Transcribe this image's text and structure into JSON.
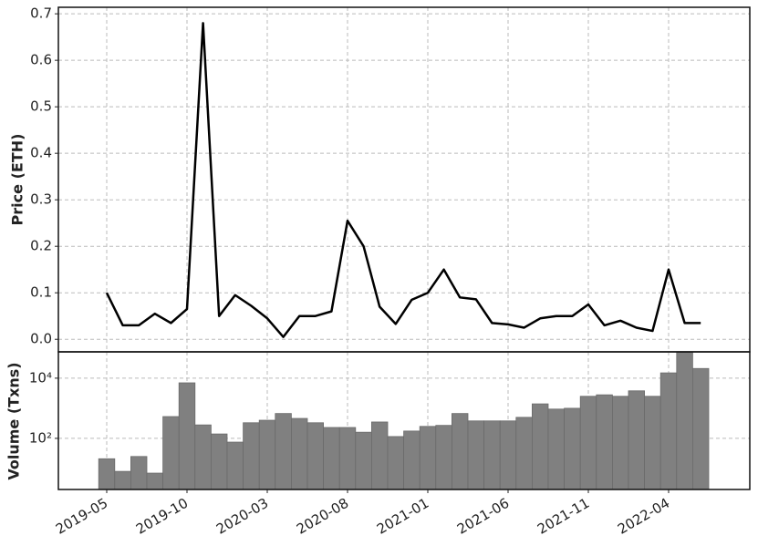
{
  "chart_data": [
    {
      "type": "line",
      "ylabel": "Price (ETH)",
      "color": "#000000",
      "grid": true,
      "x": [
        "2019-05",
        "2019-06",
        "2019-07",
        "2019-08",
        "2019-09",
        "2019-10",
        "2019-11",
        "2019-12",
        "2020-01",
        "2020-02",
        "2020-03",
        "2020-04",
        "2020-05",
        "2020-06",
        "2020-07",
        "2020-08",
        "2020-09",
        "2020-10",
        "2020-11",
        "2020-12",
        "2021-01",
        "2021-02",
        "2021-03",
        "2021-04",
        "2021-05",
        "2021-06",
        "2021-07",
        "2021-08",
        "2021-09",
        "2021-10",
        "2021-11",
        "2021-12",
        "2022-01",
        "2022-02",
        "2022-03",
        "2022-04",
        "2022-05",
        "2022-06"
      ],
      "values": [
        0.1,
        0.03,
        0.03,
        0.055,
        0.035,
        0.065,
        0.68,
        0.05,
        0.095,
        0.072,
        0.045,
        0.005,
        0.05,
        0.05,
        0.06,
        0.255,
        0.2,
        0.07,
        0.033,
        0.085,
        0.1,
        0.15,
        0.09,
        0.086,
        0.035,
        0.032,
        0.025,
        0.045,
        0.05,
        0.05,
        0.075,
        0.03,
        0.04,
        0.025,
        0.018,
        0.15,
        0.035,
        0.035
      ],
      "ylim": [
        -0.027,
        0.714
      ],
      "yticks": [
        {
          "value": 0,
          "label": "0.0"
        },
        0.1,
        0.2,
        0.3,
        0.4,
        0.5,
        0.6,
        0.7
      ]
    },
    {
      "type": "bar",
      "ylabel": "Volume (Txns)",
      "color": "#808080",
      "grid": true,
      "log_scale": true,
      "x": [
        "2019-05",
        "2019-06",
        "2019-07",
        "2019-08",
        "2019-09",
        "2019-10",
        "2019-11",
        "2019-12",
        "2020-01",
        "2020-02",
        "2020-03",
        "2020-04",
        "2020-05",
        "2020-06",
        "2020-07",
        "2020-08",
        "2020-09",
        "2020-10",
        "2020-11",
        "2020-12",
        "2021-01",
        "2021-02",
        "2021-03",
        "2021-04",
        "2021-05",
        "2021-06",
        "2021-07",
        "2021-08",
        "2021-09",
        "2021-10",
        "2021-11",
        "2021-12",
        "2022-01",
        "2022-02",
        "2022-03",
        "2022-04",
        "2022-05",
        "2022-06"
      ],
      "values": [
        21,
        8,
        25,
        7,
        530,
        7000,
        280,
        140,
        75,
        330,
        400,
        670,
        460,
        330,
        230,
        230,
        160,
        350,
        115,
        175,
        250,
        270,
        670,
        380,
        380,
        380,
        500,
        1400,
        940,
        1000,
        2500,
        2800,
        2500,
        3800,
        2500,
        15000,
        75000,
        21000
      ],
      "ylim": [
        2,
        75000
      ],
      "yticks": [
        {
          "value": 100,
          "label": "10²"
        },
        {
          "value": 10000,
          "label": "10⁴"
        }
      ],
      "xticks": [
        "2019-05",
        "2019-10",
        "2020-03",
        "2020-08",
        "2021-01",
        "2021-06",
        "2021-11",
        "2022-04"
      ]
    }
  ]
}
